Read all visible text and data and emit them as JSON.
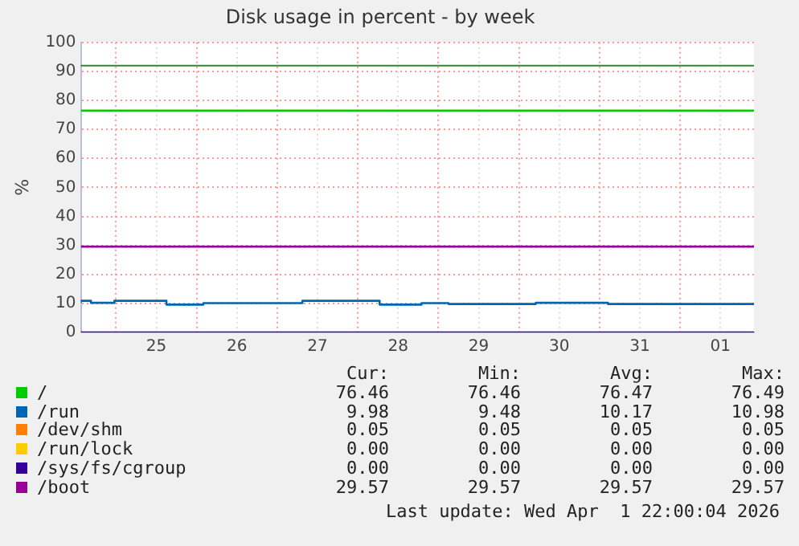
{
  "chart_data": {
    "type": "step",
    "title": "Disk usage in percent - by week",
    "ylabel": "%",
    "xlim": [
      "2026-03-24T13:30",
      "2026-04-01T22:00"
    ],
    "xticks": [
      {
        "value": "2026-03-25T00:00",
        "label": null
      },
      {
        "value": "2026-03-25T12:00",
        "label": "25"
      },
      {
        "value": "2026-03-26T00:00",
        "label": null
      },
      {
        "value": "2026-03-26T12:00",
        "label": "26"
      },
      {
        "value": "2026-03-27T00:00",
        "label": null
      },
      {
        "value": "2026-03-27T12:00",
        "label": "27"
      },
      {
        "value": "2026-03-28T00:00",
        "label": null
      },
      {
        "value": "2026-03-28T12:00",
        "label": "28"
      },
      {
        "value": "2026-03-29T00:00",
        "label": null
      },
      {
        "value": "2026-03-29T12:00",
        "label": "29"
      },
      {
        "value": "2026-03-30T00:00",
        "label": null
      },
      {
        "value": "2026-03-30T12:00",
        "label": "30"
      },
      {
        "value": "2026-03-31T00:00",
        "label": null
      },
      {
        "value": "2026-03-31T12:00",
        "label": "31"
      },
      {
        "value": "2026-04-01T00:00",
        "label": null
      },
      {
        "value": "2026-04-01T12:00",
        "label": "01"
      }
    ],
    "ylim": [
      0,
      100
    ],
    "yticks": [
      0,
      10,
      20,
      30,
      40,
      50,
      60,
      70,
      80,
      90,
      100
    ],
    "grid": true,
    "legend": "bottom",
    "marker": "none",
    "line_style": "solid",
    "ref_lines": [
      {
        "axis": "y",
        "value": 92,
        "color": "#2e8b2e"
      }
    ],
    "series": [
      {
        "name": "/",
        "color": "#00cc00",
        "x": [
          "2026-03-24T13:30",
          "2026-04-01T22:00"
        ],
        "values": [
          76.5,
          76.5
        ]
      },
      {
        "name": "/run",
        "color": "#0066b3",
        "x": [
          "2026-03-24T13:30",
          "2026-03-24T16:30",
          "2026-03-24T23:30",
          "2026-03-25T15:00",
          "2026-03-26T02:00",
          "2026-03-27T07:30",
          "2026-03-28T06:30",
          "2026-03-28T19:00",
          "2026-03-29T03:00",
          "2026-03-30T05:00",
          "2026-03-31T02:30",
          "2026-03-31T16:00",
          "2026-04-01T22:00"
        ],
        "values": [
          10.2,
          10.9,
          10.2,
          10.9,
          9.6,
          10.1,
          10.9,
          9.6,
          10.1,
          9.8,
          10.2,
          9.8,
          9.8
        ]
      },
      {
        "name": "/dev/shm",
        "color": "#ff8000"
      },
      {
        "name": "/run/lock",
        "color": "#ffcc00"
      },
      {
        "name": "/sys/fs/cgroup",
        "color": "#330099",
        "x": [
          "2026-03-24T13:30",
          "2026-04-01T22:00"
        ],
        "values": [
          0,
          0
        ]
      },
      {
        "name": "/boot",
        "color": "#990099",
        "x": [
          "2026-03-24T13:30",
          "2026-04-01T22:00"
        ],
        "values": [
          29.6,
          29.6
        ]
      }
    ],
    "annotations": [
      "Cur:",
      "Min:",
      "Avg:",
      "Max:",
      "76.46",
      "76.46",
      "76.47",
      "76.49",
      "9.98",
      "9.48",
      "10.17",
      "10.98",
      "0.05",
      "0.05",
      "0.05",
      "0.05",
      "0.00",
      "0.00",
      "0.00",
      "0.00",
      "0.00",
      "0.00",
      "0.00",
      "0.00",
      "29.57",
      "29.57",
      "29.57",
      "29.57",
      "Last update: Wed Apr  1 22:00:04 2026"
    ]
  }
}
